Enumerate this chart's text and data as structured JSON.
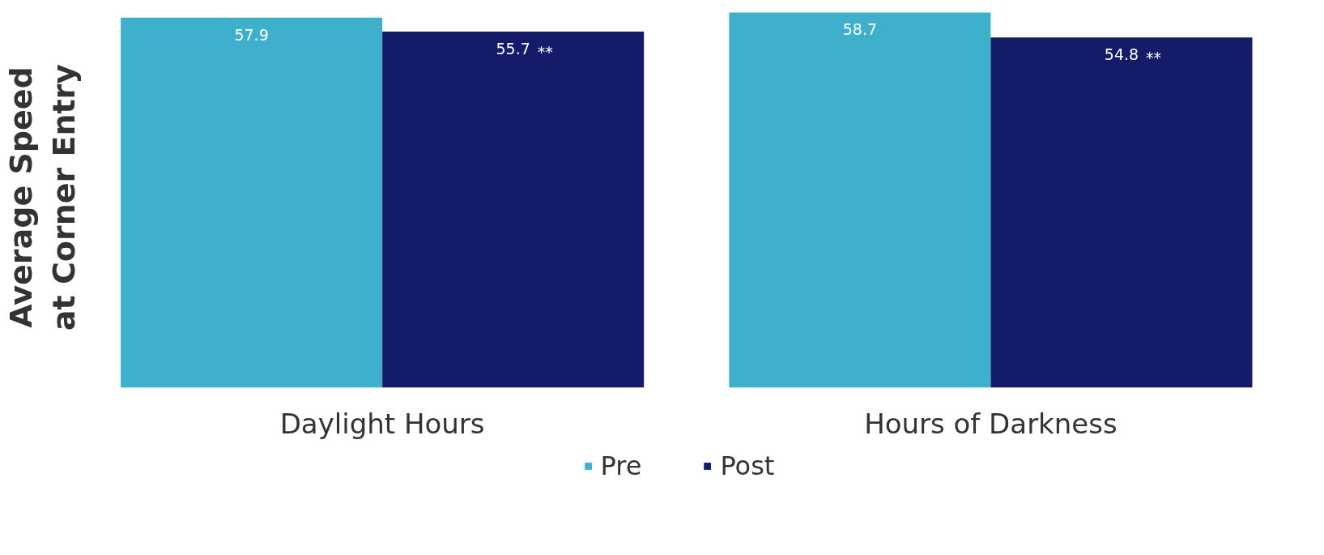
{
  "chart_data": {
    "type": "bar",
    "ylabel": "Average Speed\nat Corner Entry",
    "categories": [
      "Daylight Hours",
      "Hours of Darkness"
    ],
    "series": [
      {
        "name": "Pre",
        "color": "#3fb0cc",
        "values": [
          57.9,
          58.7
        ]
      },
      {
        "name": "Post",
        "color": "#141c69",
        "values": [
          55.7,
          54.8
        ]
      }
    ],
    "data_labels": true,
    "legend": "bottom",
    "grid": false,
    "tick_labels": "x",
    "annotations": [
      "**",
      "**"
    ]
  }
}
